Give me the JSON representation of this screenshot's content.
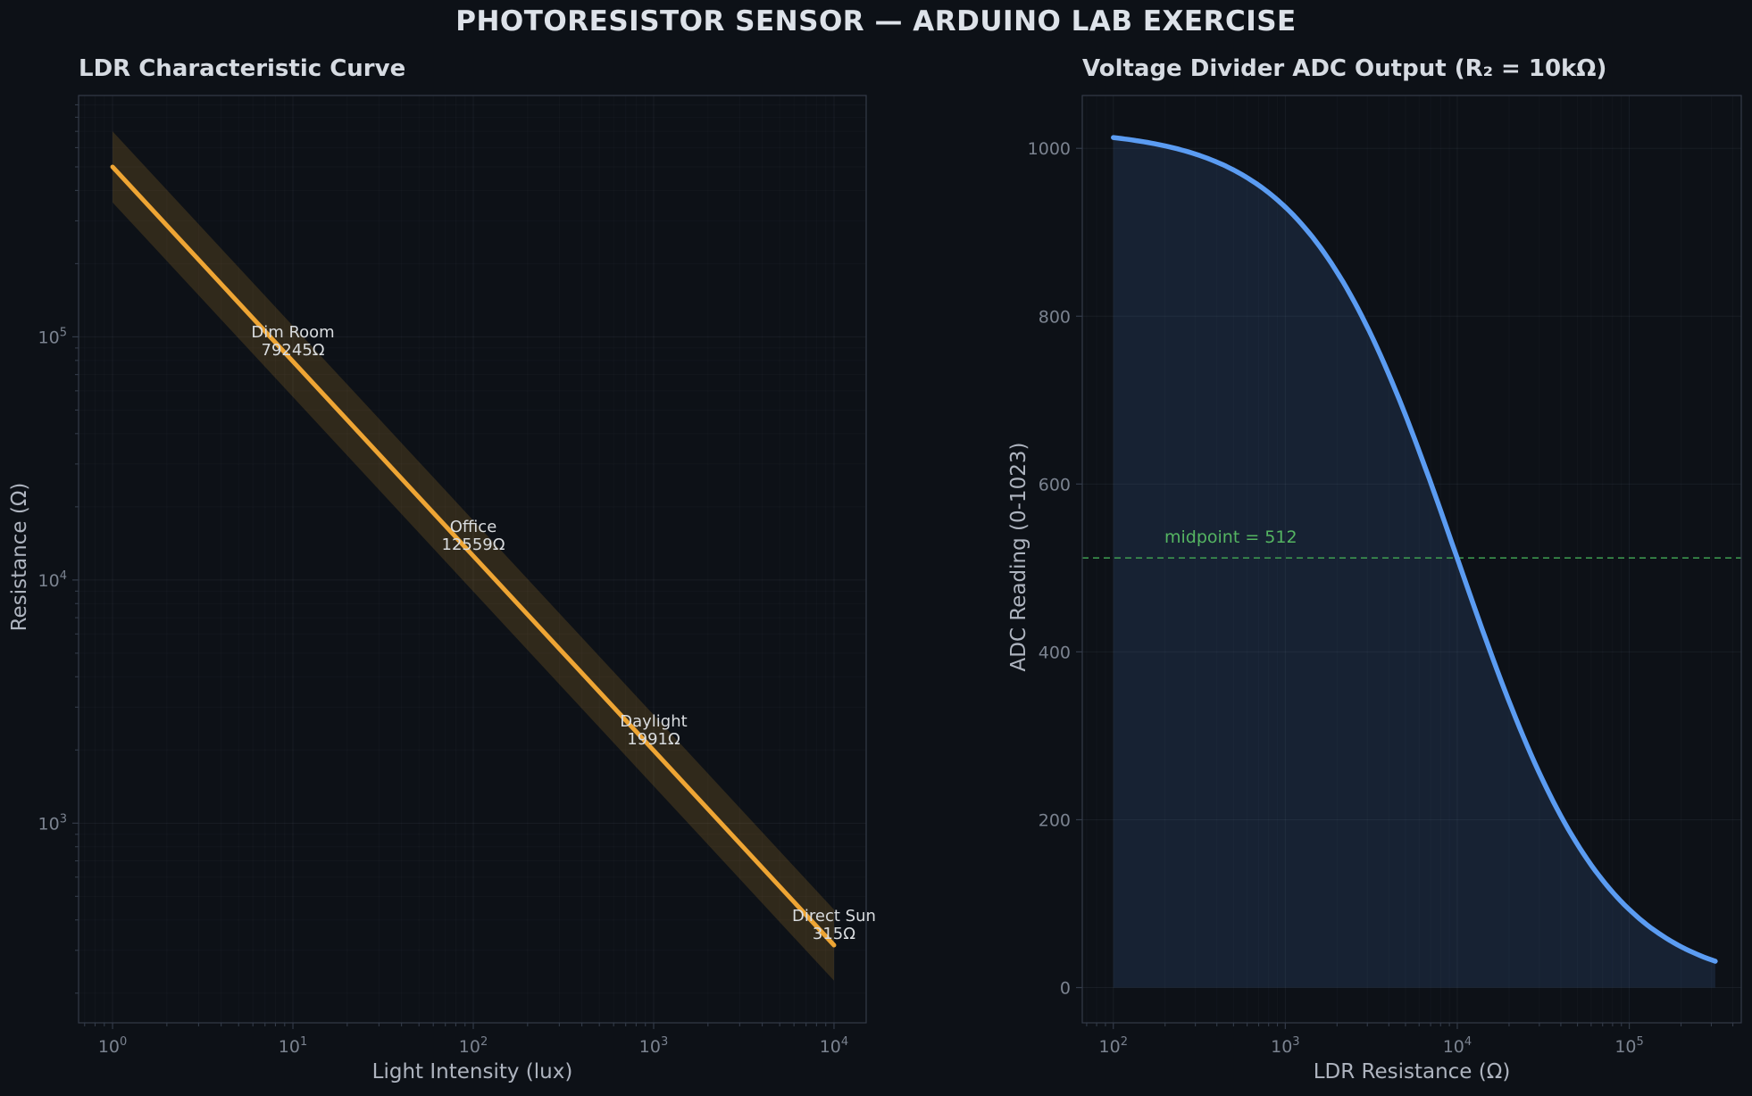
{
  "page": {
    "title": "PHOTORESISTOR SENSOR — ARDUINO LAB EXERCISE"
  },
  "colors": {
    "background": "#0d1117",
    "title_text": "#dde2e9",
    "subtitle_text": "#d6dbe2",
    "tick_text": "#7b8390",
    "axis_label_text": "#aeb4bf",
    "spine": "#333b49",
    "grid_major": "rgba(130,140,155,0.10)",
    "grid_minor": "rgba(130,140,155,0.045)",
    "ldr_line": "#eea534",
    "ldr_band": "rgba(238,165,52,0.16)",
    "adc_line": "#5b9cf2",
    "adc_fill": "rgba(91,156,242,0.13)",
    "midline": "#3f9e52",
    "midline_text": "#55b562",
    "annotation_text": "#d9dcdf"
  },
  "chart_data": [
    {
      "type": "line",
      "title": "LDR Characteristic Curve",
      "xlabel": "Light Intensity (lux)",
      "ylabel": "Resistance (Ω)",
      "xscale": "log",
      "yscale": "log",
      "xlim": [
        0.648,
        15080
      ],
      "ylim": [
        151,
        983000
      ],
      "x_ticks": [
        1,
        10,
        100,
        1000,
        10000
      ],
      "y_ticks": [
        1000,
        10000,
        100000
      ],
      "grid": true,
      "series": [
        {
          "name": "LDR resistance",
          "band_ratio": 1.4,
          "points": [
            [
              1,
              500000
            ],
            [
              10,
              79245
            ],
            [
              100,
              12559
            ],
            [
              1000,
              1991
            ],
            [
              10000,
              315
            ]
          ]
        }
      ],
      "annotations": [
        {
          "x": 10,
          "y": 79245,
          "label": "Dim Room",
          "value": "79245Ω"
        },
        {
          "x": 100,
          "y": 12559,
          "label": "Office",
          "value": "12559Ω"
        },
        {
          "x": 1000,
          "y": 1991,
          "label": "Daylight",
          "value": "1991Ω"
        },
        {
          "x": 10000,
          "y": 315,
          "label": "Direct Sun",
          "value": "315Ω"
        }
      ]
    },
    {
      "type": "area",
      "title": "Voltage Divider ADC Output (R₂ = 10kΩ)",
      "xlabel": "LDR Resistance (Ω)",
      "ylabel": "ADC Reading (0-1023)",
      "xscale": "log",
      "yscale": "linear",
      "xlim": [
        66,
        448000
      ],
      "ylim": [
        -42,
        1063
      ],
      "x_ticks": [
        100,
        1000,
        10000,
        100000
      ],
      "y_ticks": [
        0,
        200,
        400,
        600,
        800,
        1000
      ],
      "grid": true,
      "formula": {
        "kind": "voltage_divider",
        "adc_max": 1023,
        "r2_ohms": 10000,
        "r_min": 100,
        "r_max": 316228
      },
      "series": [
        {
          "name": "ADC reading",
          "points": [
            [
              100,
              1013
            ],
            [
              178,
              1005
            ],
            [
              316,
              992
            ],
            [
              562,
              969
            ],
            [
              1000,
              930
            ],
            [
              1778,
              869
            ],
            [
              3162,
              777
            ],
            [
              5623,
              655
            ],
            [
              10000,
              512
            ],
            [
              17783,
              368
            ],
            [
              31623,
              246
            ],
            [
              56234,
              154
            ],
            [
              100000,
              93
            ],
            [
              177828,
              54
            ],
            [
              316228,
              31
            ]
          ]
        }
      ],
      "reference_line": {
        "y": 512,
        "label": "midpoint = 512"
      }
    }
  ]
}
